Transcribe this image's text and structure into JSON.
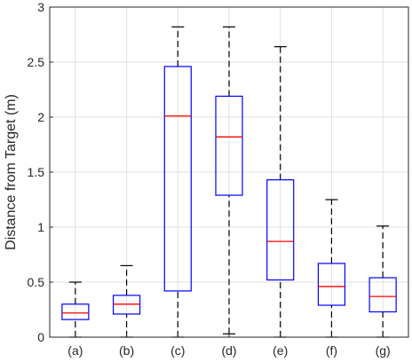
{
  "chart_data": {
    "type": "box",
    "title": "",
    "xlabel": "",
    "ylabel": "Distance from Target (m)",
    "ylim": [
      0,
      3
    ],
    "yticks": [
      0,
      0.5,
      1,
      1.5,
      2,
      2.5,
      3
    ],
    "ytick_labels": [
      "0",
      "0.5",
      "1",
      "1.5",
      "2",
      "2.5",
      "3"
    ],
    "grid": true,
    "categories": [
      "(a)",
      "(b)",
      "(c)",
      "(d)",
      "(e)",
      "(f)",
      "(g)"
    ],
    "boxes": [
      {
        "whisker_low": 0.0,
        "q1": 0.16,
        "median": 0.22,
        "q3": 0.3,
        "whisker_high": 0.5
      },
      {
        "whisker_low": 0.0,
        "q1": 0.21,
        "median": 0.3,
        "q3": 0.38,
        "whisker_high": 0.65
      },
      {
        "whisker_low": 0.0,
        "q1": 0.42,
        "median": 2.01,
        "q3": 2.46,
        "whisker_high": 2.82
      },
      {
        "whisker_low": 0.03,
        "q1": 1.29,
        "median": 1.82,
        "q3": 2.19,
        "whisker_high": 2.82
      },
      {
        "whisker_low": 0.0,
        "q1": 0.52,
        "median": 0.87,
        "q3": 1.43,
        "whisker_high": 2.64
      },
      {
        "whisker_low": 0.0,
        "q1": 0.29,
        "median": 0.46,
        "q3": 0.67,
        "whisker_high": 1.25
      },
      {
        "whisker_low": 0.0,
        "q1": 0.23,
        "median": 0.37,
        "q3": 0.54,
        "whisker_high": 1.01
      }
    ],
    "colors": {
      "box": "#0000ff",
      "median": "#ff0000",
      "whisker": "#000000",
      "grid": "#e1e1e1",
      "axis": "#262626"
    }
  }
}
